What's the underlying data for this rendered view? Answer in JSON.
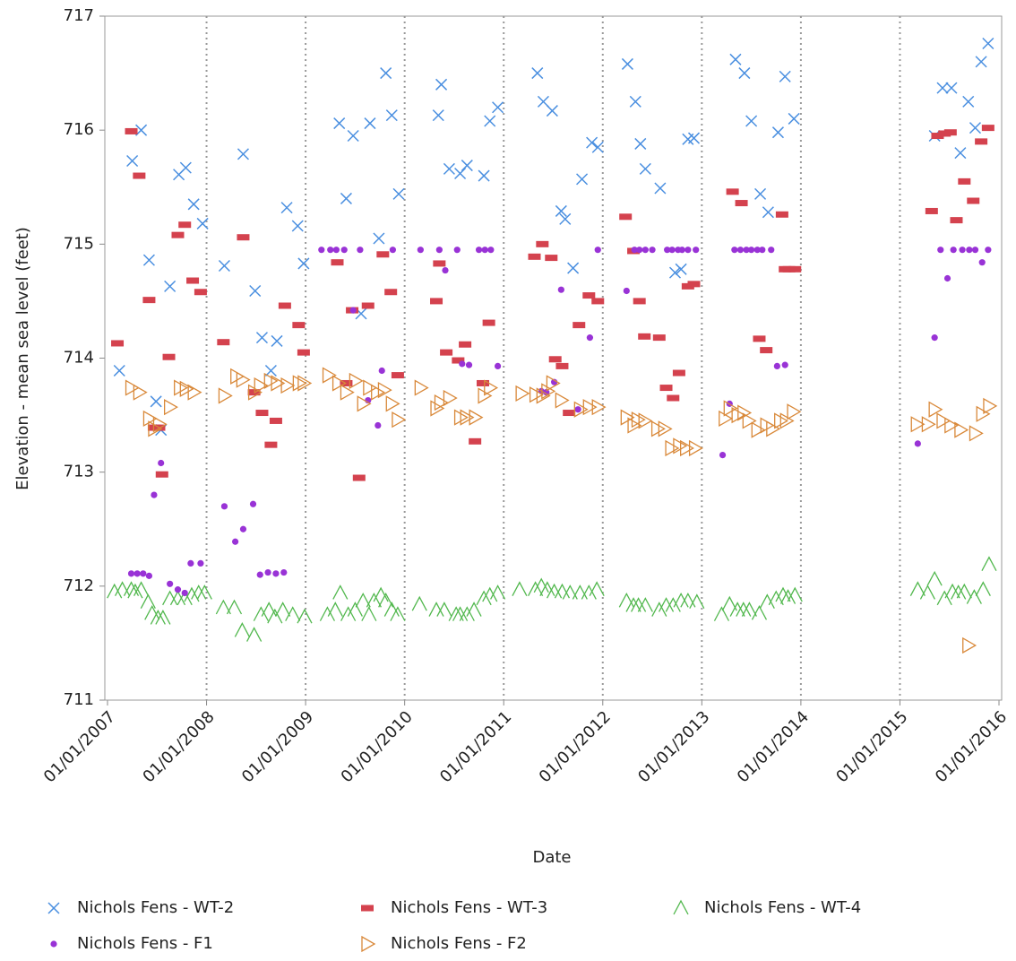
{
  "chart_data": {
    "type": "scatter",
    "x_label": "Date",
    "y_label": "Elevation - mean sea level (feet)",
    "xlim": [
      2006.973,
      2016.027
    ],
    "ylim": [
      711,
      717
    ],
    "xticks": [
      {
        "value": 2007,
        "label": "01/01/2007"
      },
      {
        "value": 2008,
        "label": "01/01/2008"
      },
      {
        "value": 2009,
        "label": "01/01/2009"
      },
      {
        "value": 2010,
        "label": "01/01/2010"
      },
      {
        "value": 2011,
        "label": "01/01/2011"
      },
      {
        "value": 2012,
        "label": "01/01/2012"
      },
      {
        "value": 2013,
        "label": "01/01/2013"
      },
      {
        "value": 2014,
        "label": "01/01/2014"
      },
      {
        "value": 2015,
        "label": "01/01/2015"
      },
      {
        "value": 2016,
        "label": "01/01/2016"
      }
    ],
    "yticks": [
      711,
      712,
      713,
      714,
      715,
      716,
      717
    ],
    "grid": true,
    "legend": "bottom",
    "series": [
      {
        "name": "Nichols Fens - WT-2",
        "color": "#4a8fe0",
        "marker": "x",
        "x": [
          2007.12,
          2007.25,
          2007.34,
          2007.42,
          2007.49,
          2007.54,
          2007.63,
          2007.72,
          2007.79,
          2007.87,
          2007.96,
          2008.18,
          2008.37,
          2008.49,
          2008.56,
          2008.71,
          2008.65,
          2008.81,
          2008.92,
          2008.98,
          2009.34,
          2009.41,
          2009.48,
          2009.56,
          2009.65,
          2009.74,
          2009.81,
          2009.87,
          2009.94,
          2010.34,
          2010.37,
          2010.45,
          2010.56,
          2010.63,
          2010.8,
          2010.86,
          2010.94,
          2011.34,
          2011.4,
          2011.49,
          2011.58,
          2011.62,
          2011.7,
          2011.79,
          2011.89,
          2011.95,
          2012.25,
          2012.33,
          2012.38,
          2012.43,
          2012.58,
          2012.73,
          2012.79,
          2012.86,
          2012.92,
          2013.34,
          2013.43,
          2013.5,
          2013.59,
          2013.67,
          2013.77,
          2013.84,
          2013.93,
          2015.35,
          2015.43,
          2015.52,
          2015.61,
          2015.69,
          2015.76,
          2015.82,
          2015.89
        ],
        "values": [
          713.89,
          715.73,
          716.0,
          714.86,
          713.62,
          713.37,
          714.63,
          715.61,
          715.67,
          715.35,
          715.18,
          714.81,
          715.79,
          714.59,
          714.18,
          714.15,
          713.89,
          715.32,
          715.16,
          714.83,
          716.06,
          715.4,
          715.95,
          714.39,
          716.06,
          715.05,
          716.5,
          716.13,
          715.44,
          716.13,
          716.4,
          715.66,
          715.62,
          715.69,
          715.6,
          716.08,
          716.2,
          716.5,
          716.25,
          716.17,
          715.29,
          715.22,
          714.79,
          715.57,
          715.89,
          715.85,
          716.58,
          716.25,
          715.88,
          715.66,
          715.49,
          714.75,
          714.78,
          715.92,
          715.93,
          716.62,
          716.5,
          716.08,
          715.44,
          715.28,
          715.98,
          716.47,
          716.1,
          715.95,
          716.37,
          716.37,
          715.8,
          716.25,
          716.02,
          716.6,
          716.76
        ]
      },
      {
        "name": "Nichols Fens - WT-3",
        "color": "#d4424e",
        "marker": "dash",
        "x": [
          2007.1,
          2007.24,
          2007.32,
          2007.42,
          2007.47,
          2007.52,
          2007.55,
          2007.62,
          2007.71,
          2007.78,
          2007.86,
          2007.94,
          2008.17,
          2008.37,
          2008.48,
          2008.56,
          2008.65,
          2008.7,
          2008.79,
          2008.93,
          2008.98,
          2009.32,
          2009.41,
          2009.47,
          2009.54,
          2009.63,
          2009.78,
          2009.86,
          2009.93,
          2010.32,
          2010.35,
          2010.42,
          2010.54,
          2010.61,
          2010.71,
          2010.79,
          2010.85,
          2011.31,
          2011.39,
          2011.48,
          2011.52,
          2011.59,
          2011.66,
          2011.76,
          2011.86,
          2011.95,
          2012.23,
          2012.31,
          2012.37,
          2012.42,
          2012.57,
          2012.64,
          2012.71,
          2012.77,
          2012.86,
          2012.92,
          2013.31,
          2013.4,
          2013.58,
          2013.65,
          2013.81,
          2013.84,
          2013.88,
          2013.94,
          2015.32,
          2015.38,
          2015.45,
          2015.51,
          2015.57,
          2015.65,
          2015.74,
          2015.82,
          2015.89
        ],
        "values": [
          714.13,
          715.99,
          715.6,
          714.51,
          713.39,
          713.39,
          712.98,
          714.01,
          715.08,
          715.17,
          714.68,
          714.58,
          714.14,
          715.06,
          713.7,
          713.52,
          713.24,
          713.45,
          714.46,
          714.29,
          714.05,
          714.84,
          713.78,
          714.42,
          712.95,
          714.46,
          714.91,
          714.58,
          713.85,
          714.5,
          714.83,
          714.05,
          713.98,
          714.12,
          713.27,
          713.78,
          714.31,
          714.89,
          715.0,
          714.88,
          713.99,
          713.93,
          713.52,
          714.29,
          714.55,
          714.5,
          715.24,
          714.94,
          714.5,
          714.19,
          714.18,
          713.74,
          713.65,
          713.87,
          714.63,
          714.65,
          715.46,
          715.36,
          714.17,
          714.07,
          715.26,
          714.78,
          714.78,
          714.78,
          715.29,
          715.95,
          715.97,
          715.98,
          715.21,
          715.55,
          715.38,
          715.9,
          716.02
        ]
      },
      {
        "name": "Nichols Fens - WT-4",
        "color": "#52b84e",
        "marker": "triangle",
        "x": [
          2007.07,
          2007.15,
          2007.24,
          2007.28,
          2007.34,
          2007.41,
          2007.45,
          2007.51,
          2007.56,
          2007.63,
          2007.71,
          2007.78,
          2007.85,
          2007.92,
          2007.98,
          2008.17,
          2008.28,
          2008.36,
          2008.48,
          2008.55,
          2008.63,
          2008.69,
          2008.77,
          2008.87,
          2008.99,
          2009.22,
          2009.3,
          2009.35,
          2009.43,
          2009.5,
          2009.58,
          2009.64,
          2009.69,
          2009.76,
          2009.81,
          2009.87,
          2009.93,
          2010.15,
          2010.32,
          2010.4,
          2010.52,
          2010.56,
          2010.63,
          2010.7,
          2010.8,
          2010.86,
          2010.94,
          2011.16,
          2011.32,
          2011.38,
          2011.44,
          2011.51,
          2011.59,
          2011.67,
          2011.77,
          2011.86,
          2011.94,
          2012.24,
          2012.31,
          2012.36,
          2012.43,
          2012.57,
          2012.64,
          2012.71,
          2012.79,
          2012.86,
          2012.95,
          2013.2,
          2013.28,
          2013.36,
          2013.42,
          2013.48,
          2013.58,
          2013.66,
          2013.75,
          2013.82,
          2013.87,
          2013.94,
          2015.18,
          2015.28,
          2015.35,
          2015.45,
          2015.53,
          2015.59,
          2015.65,
          2015.75,
          2015.84,
          2015.9
        ],
        "values": [
          711.95,
          711.97,
          711.97,
          711.95,
          711.97,
          711.86,
          711.76,
          711.72,
          711.72,
          711.89,
          711.89,
          711.89,
          711.92,
          711.94,
          711.94,
          711.81,
          711.81,
          711.61,
          711.57,
          711.75,
          711.79,
          711.73,
          711.79,
          711.75,
          711.73,
          711.75,
          711.79,
          711.94,
          711.75,
          711.79,
          711.87,
          711.75,
          711.87,
          711.92,
          711.87,
          711.79,
          711.75,
          711.84,
          711.79,
          711.79,
          711.75,
          711.75,
          711.75,
          711.79,
          711.89,
          711.92,
          711.94,
          711.97,
          711.97,
          712.0,
          711.97,
          711.95,
          711.95,
          711.94,
          711.94,
          711.94,
          711.97,
          711.87,
          711.83,
          711.83,
          711.83,
          711.79,
          711.83,
          711.83,
          711.87,
          711.87,
          711.86,
          711.75,
          711.84,
          711.79,
          711.79,
          711.79,
          711.76,
          711.86,
          711.89,
          711.92,
          711.9,
          711.92,
          711.97,
          711.94,
          712.06,
          711.89,
          711.95,
          711.94,
          711.95,
          711.9,
          711.97,
          712.19
        ]
      },
      {
        "name": "Nichols Fens - F1",
        "color": "#9933d6",
        "marker": "dot",
        "x": [
          2007.24,
          2007.3,
          2007.36,
          2007.42,
          2007.47,
          2007.54,
          2007.63,
          2007.71,
          2007.78,
          2007.84,
          2007.94,
          2008.18,
          2008.29,
          2008.37,
          2008.47,
          2008.54,
          2008.62,
          2008.7,
          2008.78,
          2009.16,
          2009.25,
          2009.31,
          2009.39,
          2009.48,
          2009.55,
          2009.63,
          2009.73,
          2009.77,
          2009.88,
          2010.16,
          2010.35,
          2010.41,
          2010.53,
          2010.58,
          2010.65,
          2010.75,
          2010.81,
          2010.87,
          2010.94,
          2011.38,
          2011.43,
          2011.51,
          2011.58,
          2011.75,
          2011.87,
          2011.95,
          2012.24,
          2012.32,
          2012.37,
          2012.43,
          2012.5,
          2012.65,
          2012.7,
          2012.76,
          2012.8,
          2012.86,
          2012.94,
          2013.21,
          2013.28,
          2013.33,
          2013.39,
          2013.45,
          2013.5,
          2013.56,
          2013.61,
          2013.7,
          2013.76,
          2013.84,
          2015.18,
          2015.35,
          2015.41,
          2015.48,
          2015.54,
          2015.63,
          2015.7,
          2015.76,
          2015.83,
          2015.89
        ],
        "values": [
          712.11,
          712.11,
          712.11,
          712.09,
          712.8,
          713.08,
          712.02,
          711.97,
          711.94,
          712.2,
          712.2,
          712.7,
          712.39,
          712.5,
          712.72,
          712.1,
          712.12,
          712.11,
          712.12,
          714.95,
          714.95,
          714.95,
          714.95,
          714.42,
          714.95,
          713.63,
          713.41,
          713.89,
          714.95,
          714.95,
          714.95,
          714.77,
          714.95,
          713.95,
          713.94,
          714.95,
          714.95,
          714.95,
          713.93,
          713.71,
          713.7,
          713.79,
          714.6,
          713.55,
          714.18,
          714.95,
          714.59,
          714.95,
          714.95,
          714.95,
          714.95,
          714.95,
          714.95,
          714.95,
          714.95,
          714.95,
          714.95,
          713.15,
          713.6,
          714.95,
          714.95,
          714.95,
          714.95,
          714.95,
          714.95,
          714.95,
          713.93,
          713.94,
          713.25,
          714.18,
          714.95,
          714.7,
          714.95,
          714.95,
          714.95,
          714.95,
          714.84,
          714.95
        ]
      },
      {
        "name": "Nichols Fens - F2",
        "color": "#d9893a",
        "marker": "triangle-right",
        "x": [
          2007.24,
          2007.32,
          2007.42,
          2007.47,
          2007.52,
          2007.63,
          2007.73,
          2007.79,
          2007.87,
          2008.18,
          2008.3,
          2008.36,
          2008.48,
          2008.54,
          2008.64,
          2008.71,
          2008.81,
          2008.93,
          2008.98,
          2009.23,
          2009.33,
          2009.41,
          2009.5,
          2009.58,
          2009.64,
          2009.72,
          2009.79,
          2009.87,
          2009.93,
          2010.16,
          2010.32,
          2010.36,
          2010.45,
          2010.56,
          2010.62,
          2010.71,
          2010.8,
          2010.86,
          2011.18,
          2011.32,
          2011.39,
          2011.44,
          2011.49,
          2011.58,
          2011.77,
          2011.86,
          2011.95,
          2012.24,
          2012.31,
          2012.35,
          2012.42,
          2012.55,
          2012.62,
          2012.69,
          2012.77,
          2012.84,
          2012.93,
          2013.23,
          2013.28,
          2013.36,
          2013.42,
          2013.47,
          2013.56,
          2013.65,
          2013.71,
          2013.79,
          2013.85,
          2013.92,
          2015.17,
          2015.28,
          2015.35,
          2015.43,
          2015.51,
          2015.61,
          2015.69,
          2015.76,
          2015.83,
          2015.9
        ],
        "values": [
          713.74,
          713.7,
          713.47,
          713.38,
          713.42,
          713.57,
          713.74,
          713.73,
          713.7,
          713.67,
          713.84,
          713.81,
          713.7,
          713.76,
          713.8,
          713.78,
          713.76,
          713.78,
          713.78,
          713.85,
          713.78,
          713.7,
          713.8,
          713.6,
          713.74,
          713.7,
          713.72,
          713.6,
          713.46,
          713.74,
          713.56,
          713.61,
          713.65,
          713.48,
          713.48,
          713.48,
          713.67,
          713.74,
          713.69,
          713.68,
          713.67,
          713.71,
          713.78,
          713.63,
          713.55,
          713.57,
          713.57,
          713.48,
          713.41,
          713.46,
          713.45,
          713.38,
          713.38,
          713.21,
          713.23,
          713.21,
          713.21,
          713.47,
          713.56,
          713.5,
          713.52,
          713.45,
          713.37,
          713.41,
          713.38,
          713.45,
          713.45,
          713.53,
          713.42,
          713.42,
          713.55,
          713.45,
          713.41,
          713.37,
          711.48,
          713.34,
          713.51,
          713.58
        ]
      }
    ]
  }
}
